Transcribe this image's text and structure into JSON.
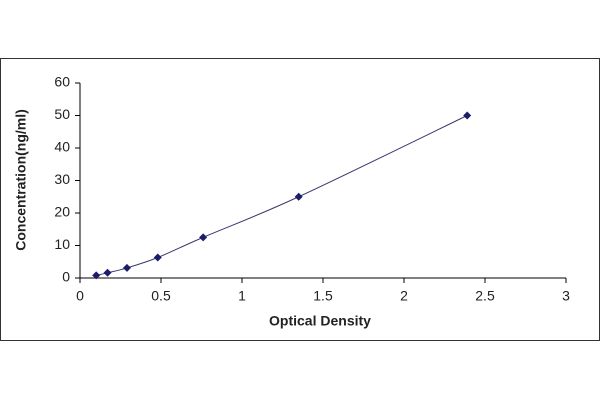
{
  "chart_data": {
    "type": "scatter",
    "x_label": "Optical Density",
    "y_label": "Concentration(ng/ml)",
    "series": [
      {
        "color": "#1c1c6b",
        "x": [
          0.1,
          0.17,
          0.29,
          0.48,
          0.76,
          1.35,
          2.39
        ],
        "values": [
          0.8,
          1.6,
          3.1,
          6.3,
          12.5,
          25,
          50
        ]
      }
    ],
    "trendline": true,
    "trendline_color": "#3a3a6e",
    "xlim": [
      0,
      3
    ],
    "xticks": [
      0,
      0.5,
      1,
      1.5,
      2,
      2.5,
      3
    ],
    "ylim": [
      0,
      60
    ],
    "yticks": [
      0,
      10,
      20,
      30,
      40,
      50,
      60
    ],
    "grid": false
  }
}
